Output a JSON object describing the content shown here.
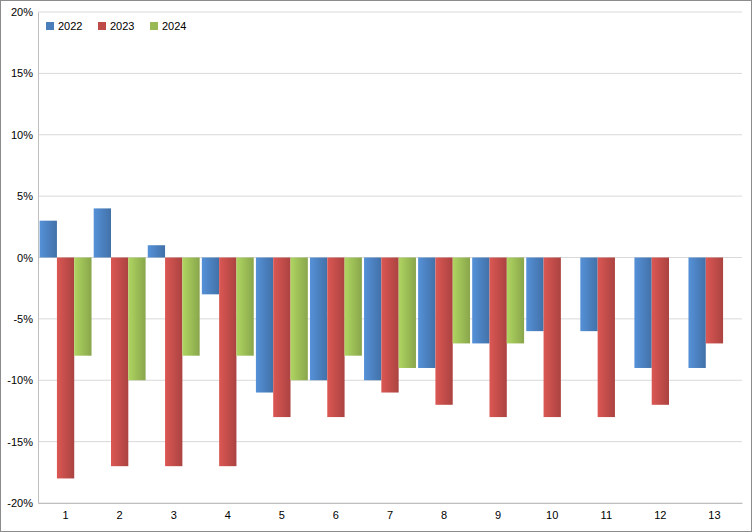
{
  "chart_data": {
    "type": "bar",
    "categories": [
      "1",
      "2",
      "3",
      "4",
      "5",
      "6",
      "7",
      "8",
      "9",
      "10",
      "11",
      "12",
      "13"
    ],
    "series": [
      {
        "name": "2022",
        "color": "#4a7ebb",
        "values": [
          3,
          4,
          1,
          -3,
          -11,
          -10,
          -10,
          -9,
          -7,
          -6,
          -6,
          -9,
          -9
        ]
      },
      {
        "name": "2023",
        "color": "#be4b48",
        "values": [
          -18,
          -17,
          -17,
          -17,
          -13,
          -13,
          -11,
          -12,
          -13,
          -13,
          -13,
          -12,
          -7
        ]
      },
      {
        "name": "2024",
        "color": "#98b954",
        "values": [
          -8,
          -10,
          -8,
          -8,
          -10,
          -8,
          -9,
          -7,
          -7,
          null,
          null,
          null,
          null
        ]
      }
    ],
    "ylim": [
      -20,
      20
    ],
    "yticks": [
      {
        "value": -20,
        "label": "-20%"
      },
      {
        "value": -15,
        "label": "-15%"
      },
      {
        "value": -10,
        "label": "-10%"
      },
      {
        "value": -5,
        "label": "-5%"
      },
      {
        "value": 0,
        "label": "0%"
      },
      {
        "value": 5,
        "label": "5%"
      },
      {
        "value": 10,
        "label": "10%"
      },
      {
        "value": 15,
        "label": "15%"
      },
      {
        "value": 20,
        "label": "20%"
      }
    ],
    "grid": true,
    "legend": "top-left"
  }
}
